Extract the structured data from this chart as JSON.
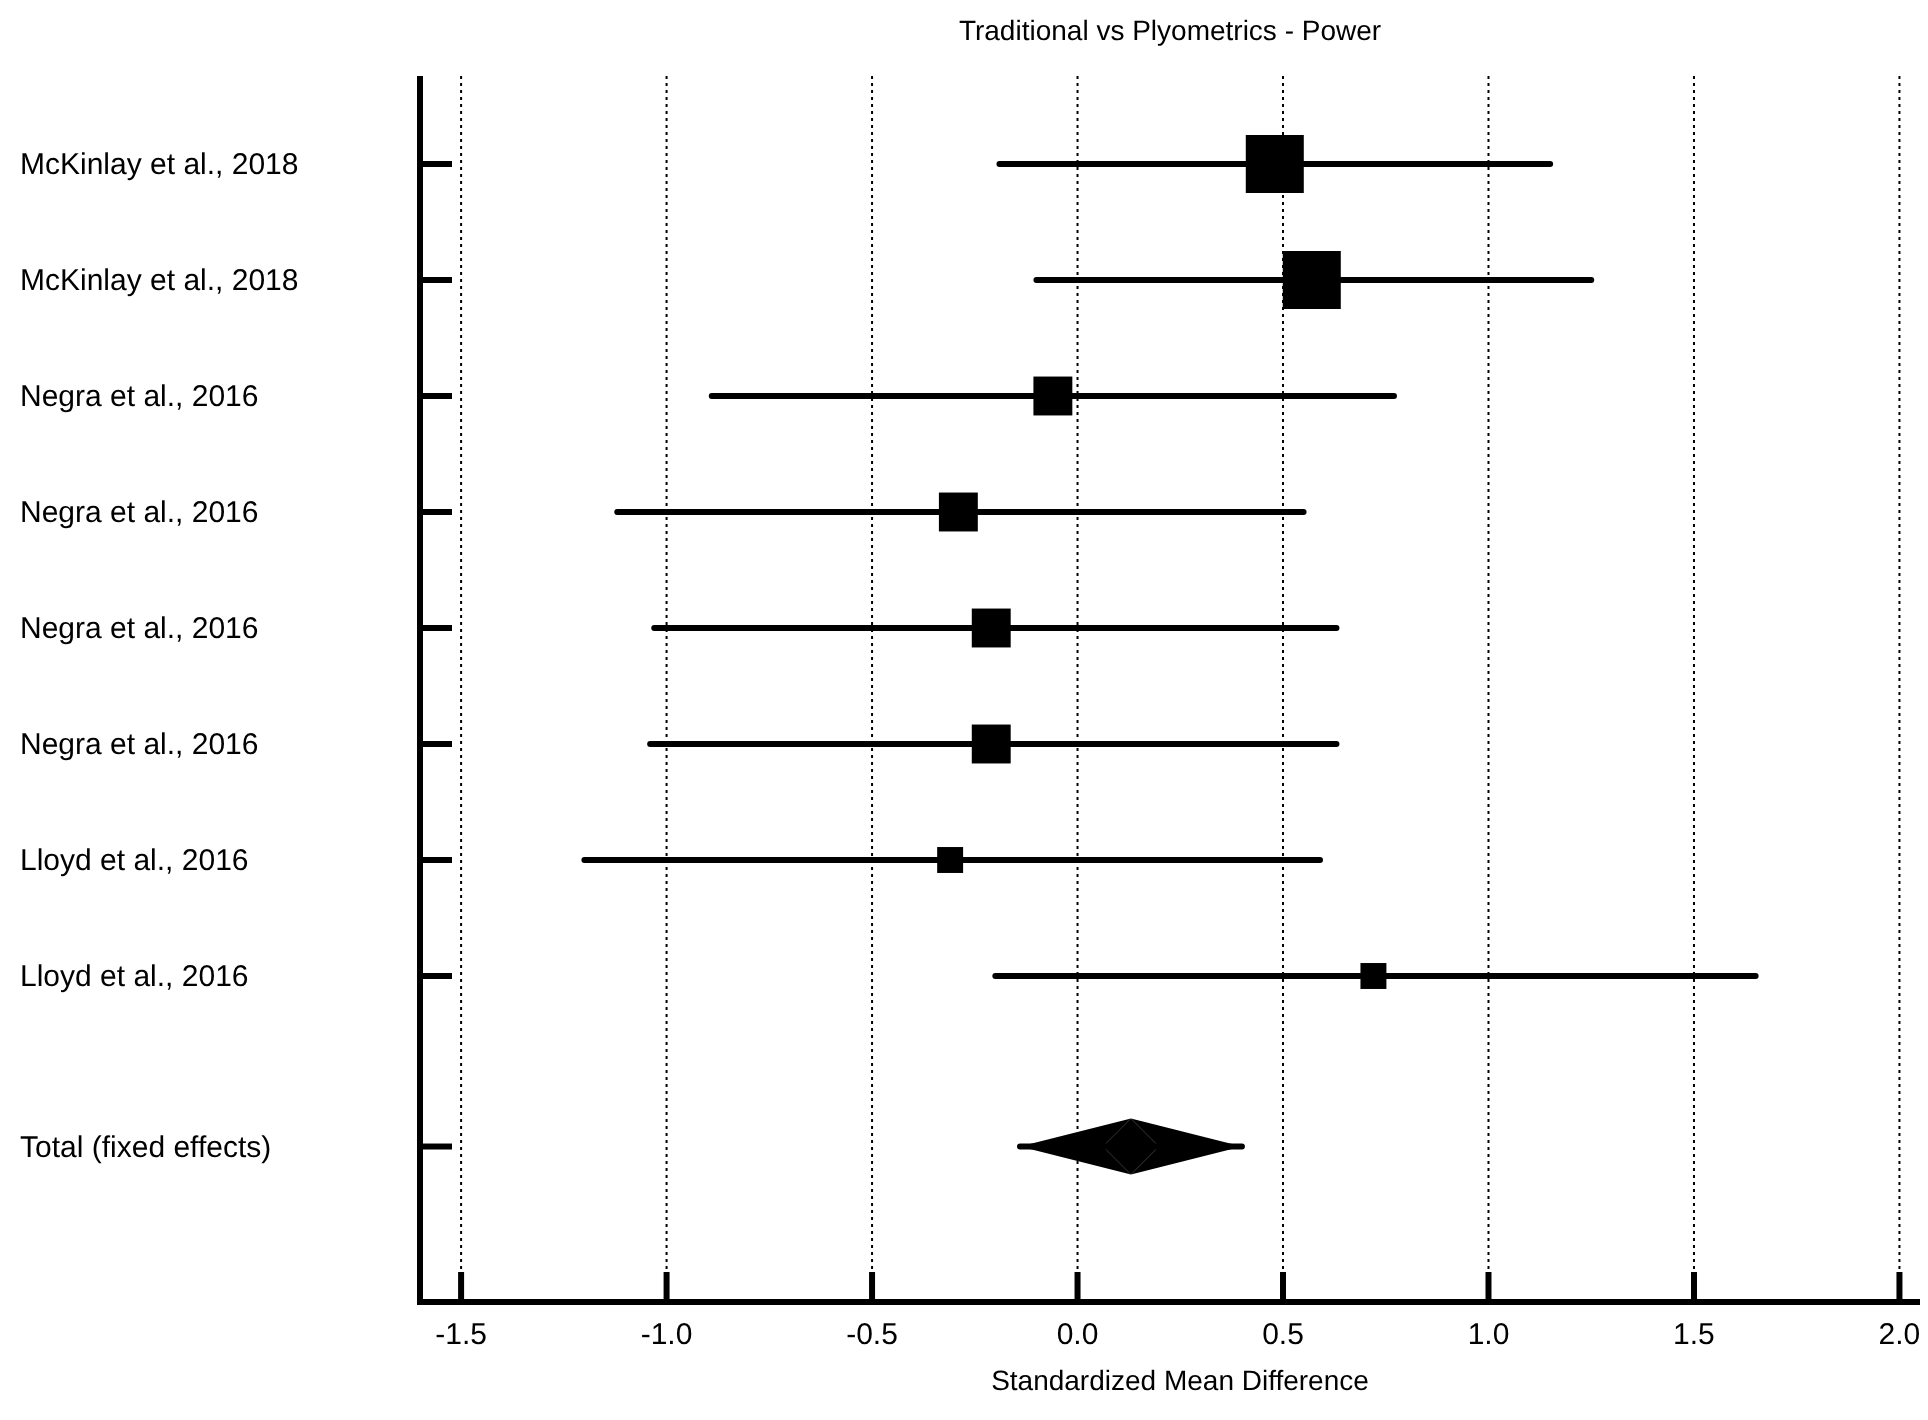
{
  "chart_data": {
    "type": "bubble",
    "orientation": "horizontal",
    "title": "Traditional vs Plyometrics - Power",
    "xlabel": "Standardized Mean Difference",
    "categories": [
      "McKinlay et al., 2018",
      "McKinlay et al., 2018",
      "Negra et al., 2016",
      "Negra et al., 2016",
      "Negra et al., 2016",
      "Negra et al., 2016",
      "Lloyd et al., 2016",
      "Lloyd et al., 2016",
      "Total (fixed effects)"
    ],
    "series": [
      {
        "marker": "square",
        "color": "#000000",
        "values": [
          0.48,
          0.57,
          -0.06,
          -0.29,
          -0.21,
          -0.21,
          -0.31,
          0.72,
          null
        ],
        "errors": [
          [
            -0.19,
            1.15
          ],
          [
            -0.1,
            1.25
          ],
          [
            -0.89,
            0.77
          ],
          [
            -1.12,
            0.55
          ],
          [
            -1.03,
            0.63
          ],
          [
            -1.04,
            0.63
          ],
          [
            -1.2,
            0.59
          ],
          [
            -0.2,
            1.65
          ],
          null
        ],
        "sizes": [
          1,
          1,
          0.45,
          0.45,
          0.45,
          0.45,
          0.2,
          0.2,
          null
        ]
      },
      {
        "type": "scatter",
        "marker": "diamond",
        "color": "#000000",
        "values": [
          null,
          null,
          null,
          null,
          null,
          null,
          null,
          null,
          0.13
        ],
        "errors": [
          null,
          null,
          null,
          null,
          null,
          null,
          null,
          null,
          [
            -0.14,
            0.4
          ]
        ]
      }
    ],
    "xlim": [
      -1.6,
      2.05
    ],
    "xticks": [
      {
        "value": -1.5,
        "label": "-1.5"
      },
      {
        "value": -1,
        "label": "-1.0"
      },
      {
        "value": -0.5,
        "label": "-0.5"
      },
      {
        "value": 0,
        "label": "0.0"
      },
      {
        "value": 0.5,
        "label": "0.5"
      },
      {
        "value": 1,
        "label": "1.0"
      },
      {
        "value": 1.5,
        "label": "1.5"
      },
      {
        "value": 2,
        "label": "2.0"
      }
    ],
    "grid": "x"
  }
}
